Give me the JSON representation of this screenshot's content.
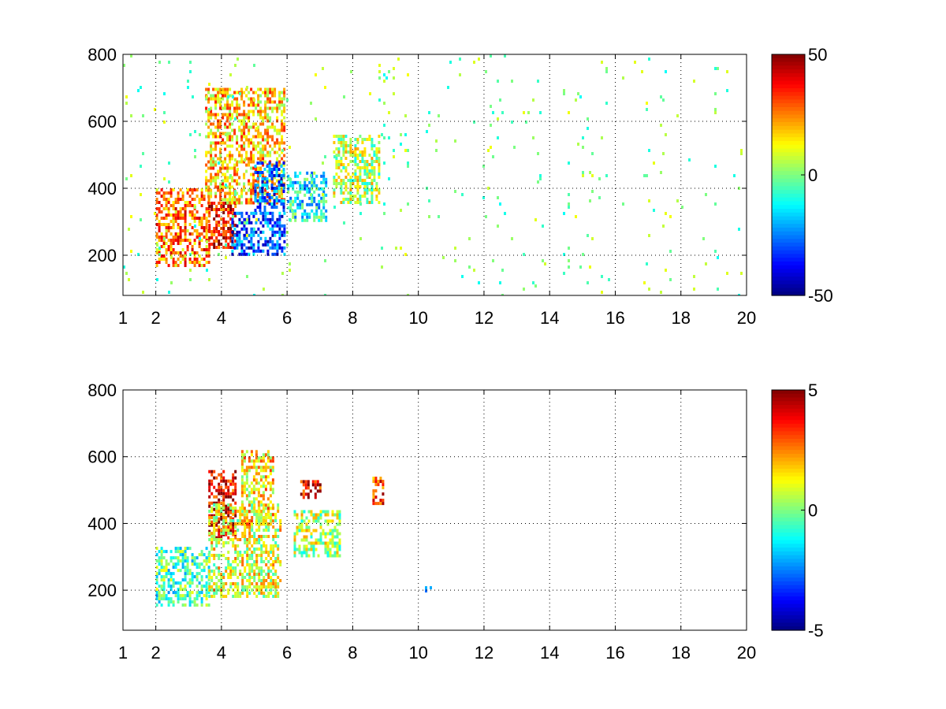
{
  "chart_data": [
    {
      "type": "heatmap",
      "title": "",
      "xlabel": "",
      "ylabel": "",
      "xlim": [
        1,
        20
      ],
      "ylim": [
        80,
        800
      ],
      "x_ticks": [
        1,
        2,
        4,
        6,
        8,
        10,
        12,
        14,
        16,
        18,
        20
      ],
      "y_ticks": [
        200,
        400,
        600,
        800
      ],
      "grid": true,
      "colormap": "jet",
      "colorbar": {
        "min": -50,
        "max": 50,
        "ticks": [
          "50",
          "0",
          "-50"
        ]
      },
      "features": [
        {
          "x_range": [
            2.0,
            3.6
          ],
          "y_range": [
            170,
            400
          ],
          "mean": 25
        },
        {
          "x_range": [
            3.6,
            4.4
          ],
          "y_range": [
            220,
            360
          ],
          "mean": 38
        },
        {
          "x_range": [
            3.5,
            5.9
          ],
          "y_range": [
            360,
            700
          ],
          "mean": 18
        },
        {
          "x_range": [
            4.3,
            5.9
          ],
          "y_range": [
            200,
            330
          ],
          "mean": -30
        },
        {
          "x_range": [
            5.0,
            5.9
          ],
          "y_range": [
            330,
            480
          ],
          "mean": -28
        },
        {
          "x_range": [
            6.0,
            7.2
          ],
          "y_range": [
            300,
            450
          ],
          "mean": -12
        },
        {
          "x_range": [
            7.4,
            8.8
          ],
          "y_range": [
            360,
            560
          ],
          "mean": 5
        },
        {
          "x_range": [
            1.0,
            20.0
          ],
          "y_range": [
            80,
            800
          ],
          "mean": 0,
          "sparse": true
        }
      ]
    },
    {
      "type": "heatmap",
      "title": "",
      "xlabel": "",
      "ylabel": "",
      "xlim": [
        1,
        20
      ],
      "ylim": [
        80,
        800
      ],
      "x_ticks": [
        1,
        2,
        4,
        6,
        8,
        10,
        12,
        14,
        16,
        18,
        20
      ],
      "y_ticks": [
        200,
        400,
        600,
        800
      ],
      "grid": true,
      "colormap": "jet",
      "colorbar": {
        "min": -5,
        "max": 5,
        "ticks": [
          "5",
          "0",
          "-5"
        ]
      },
      "features": [
        {
          "x_range": [
            2.0,
            3.6
          ],
          "y_range": [
            160,
            330
          ],
          "mean": -0.5
        },
        {
          "x_range": [
            3.6,
            4.4
          ],
          "y_range": [
            360,
            560
          ],
          "mean": 4.0
        },
        {
          "x_range": [
            3.6,
            5.8
          ],
          "y_range": [
            180,
            460
          ],
          "mean": 1.0
        },
        {
          "x_range": [
            4.6,
            5.6
          ],
          "y_range": [
            400,
            620
          ],
          "mean": 1.5
        },
        {
          "x_range": [
            6.2,
            7.6
          ],
          "y_range": [
            300,
            440
          ],
          "mean": 0.5
        },
        {
          "x_range": [
            6.4,
            7.0
          ],
          "y_range": [
            480,
            530
          ],
          "mean": 4.0
        },
        {
          "x_range": [
            8.6,
            8.9
          ],
          "y_range": [
            460,
            540
          ],
          "mean": 3.0
        },
        {
          "x_range": [
            10.2,
            10.4
          ],
          "y_range": [
            200,
            212
          ],
          "mean": -2.0
        }
      ]
    }
  ]
}
